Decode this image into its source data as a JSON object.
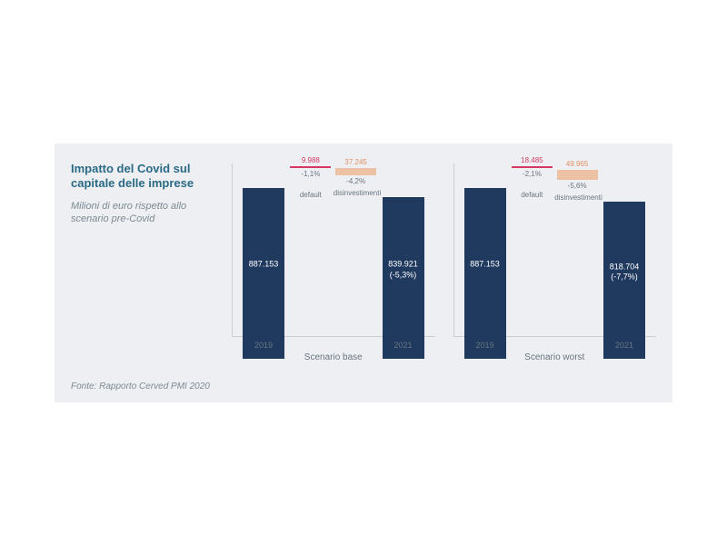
{
  "title": "Impatto del Covid sul capitale delle imprese",
  "subtitle": "Milioni di euro rispetto allo scenario pre-Covid",
  "source": "Fonte: Rapporto Cerved PMI 2020",
  "panel_bg": "#edeff2",
  "bar_color": "#203a5f",
  "default_color": "#d53860",
  "disinv_color": "#e28f63",
  "disinv_fill": "#edc1a3",
  "axis_color": "#c9ced3",
  "text_muted": "#6a7680",
  "title_color": "#2a6a85",
  "chart": {
    "max_value": 900000,
    "scenarios": [
      {
        "name": "Scenario base",
        "year_start": "2019",
        "year_end": "2021",
        "start_value": 887153,
        "start_label": "887.153",
        "end_value": 839921,
        "end_label": "839.921",
        "end_pct": "(-5,3%)",
        "default_value": 9988,
        "default_label": "9.988",
        "default_pct": "-1,1%",
        "disinv_value": 37245,
        "disinv_label": "37.245",
        "disinv_pct": "-4,2%",
        "default_word": "default",
        "disinv_word": "disinvestimenti"
      },
      {
        "name": "Scenario worst",
        "year_start": "2019",
        "year_end": "2021",
        "start_value": 887153,
        "start_label": "887.153",
        "end_value": 818704,
        "end_label": "818.704",
        "end_pct": "(-7,7%)",
        "default_value": 18485,
        "default_label": "18.485",
        "default_pct": "-2,1%",
        "disinv_value": 49965,
        "disinv_label": "49.965",
        "disinv_pct": "-5,6%",
        "default_word": "default",
        "disinv_word": "disinvestimenti"
      }
    ]
  }
}
